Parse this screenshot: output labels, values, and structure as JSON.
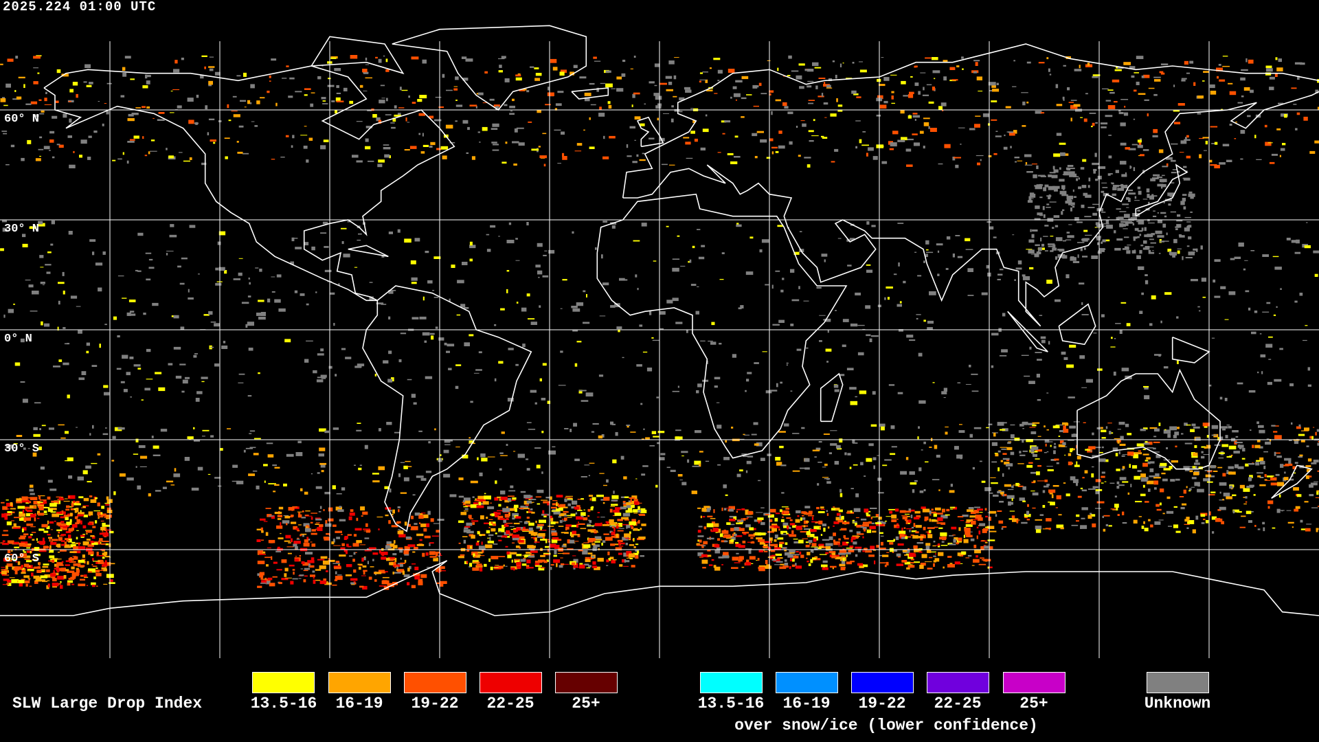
{
  "timestamp": "2025.224 01:00 UTC",
  "lat_labels": [
    "60° N",
    "30° N",
    "0° N",
    "30° S",
    "60° S"
  ],
  "lat_values": [
    60,
    30,
    0,
    -30,
    -60
  ],
  "grid_lon_step_deg": 30,
  "legend": {
    "title": "SLW Large Drop Index",
    "main": [
      {
        "label": "13.5-16",
        "color": "#ffff00"
      },
      {
        "label": "16-19",
        "color": "#ffa500"
      },
      {
        "label": "19-22",
        "color": "#ff5000"
      },
      {
        "label": "22-25",
        "color": "#ee0000"
      },
      {
        "label": "25+",
        "color": "#660000"
      }
    ],
    "snow": [
      {
        "label": "13.5-16",
        "color": "#00ffff"
      },
      {
        "label": "16-19",
        "color": "#0090ff"
      },
      {
        "label": "19-22",
        "color": "#0000ff"
      },
      {
        "label": "22-25",
        "color": "#7000dd"
      },
      {
        "label": "25+",
        "color": "#c800c8"
      }
    ],
    "snow_caption": "over snow/ice (lower confidence)",
    "unknown": {
      "label": "Unknown",
      "color": "#808080"
    }
  }
}
